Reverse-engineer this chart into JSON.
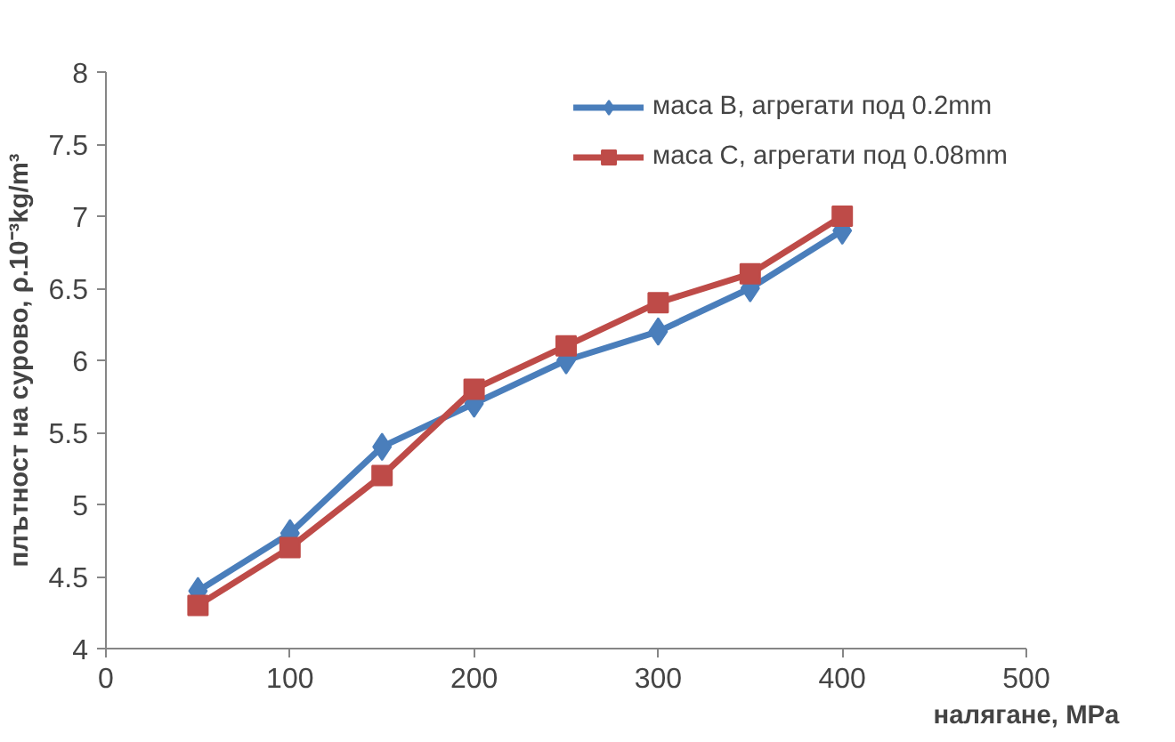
{
  "chart_data": {
    "type": "line",
    "xlabel": "налягане, MPa",
    "ylabel": "плътност на сурово, ρ.10⁻³kg/m³",
    "x": [
      50,
      100,
      150,
      200,
      250,
      300,
      350,
      400
    ],
    "series": [
      {
        "name": "маса B, агрегати под 0.2mm",
        "color": "#4a7ebb",
        "marker": "diamond",
        "values": [
          4.4,
          4.8,
          5.4,
          5.7,
          6.0,
          6.2,
          6.5,
          6.9
        ]
      },
      {
        "name": "маса C, агрегати под 0.08mm",
        "color": "#be4b48",
        "marker": "square",
        "values": [
          4.3,
          4.7,
          5.2,
          5.8,
          6.1,
          6.4,
          6.6,
          7.0
        ]
      }
    ],
    "xlim": [
      0,
      500
    ],
    "xticks": [
      0,
      100,
      200,
      300,
      400,
      500
    ],
    "ylim": [
      4,
      8
    ],
    "yticks": [
      4,
      4.5,
      5,
      5.5,
      6,
      6.5,
      7,
      7.5,
      8
    ],
    "grid": false,
    "legend": "top right",
    "line_style": "solid"
  }
}
